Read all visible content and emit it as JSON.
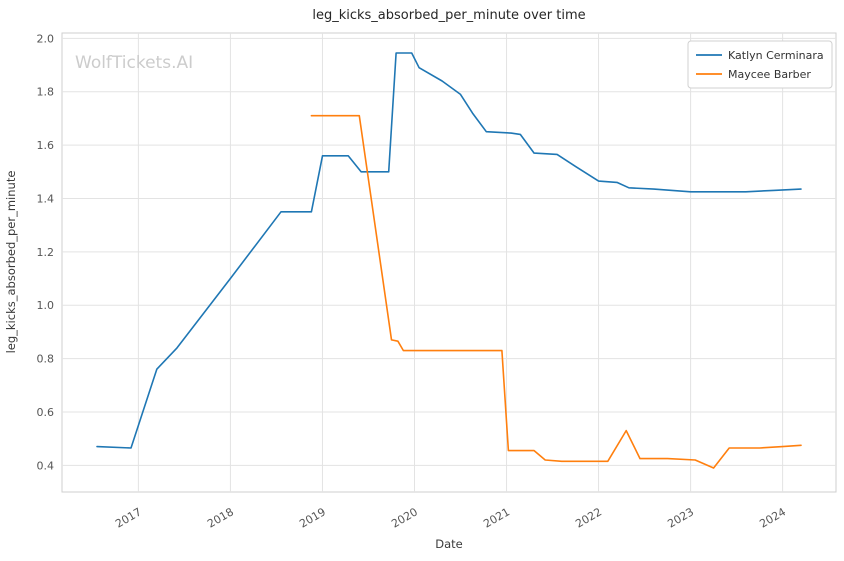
{
  "watermark": "WolfTickets.AI",
  "chart_data": {
    "type": "line",
    "title": "leg_kicks_absorbed_per_minute over time",
    "xlabel": "Date",
    "ylabel": "leg_kicks_absorbed_per_minute",
    "xlim": [
      2016.17,
      2024.58
    ],
    "ylim": [
      0.3,
      2.02
    ],
    "xticks": [
      2017,
      2018,
      2019,
      2020,
      2021,
      2022,
      2023,
      2024
    ],
    "yticks": [
      0.4,
      0.6,
      0.8,
      1.0,
      1.2,
      1.4,
      1.6,
      1.8,
      2.0
    ],
    "grid": true,
    "legend_position": "upper right",
    "grid_color": "#e3e3e3",
    "frame_color": "#cfcfcf",
    "series": [
      {
        "name": "Katlyn Cerminara",
        "color": "#1f77b4",
        "points": [
          [
            2016.55,
            0.47
          ],
          [
            2016.92,
            0.465
          ],
          [
            2017.2,
            0.76
          ],
          [
            2017.42,
            0.84
          ],
          [
            2018.0,
            1.1
          ],
          [
            2018.55,
            1.35
          ],
          [
            2018.88,
            1.35
          ],
          [
            2019.0,
            1.56
          ],
          [
            2019.28,
            1.56
          ],
          [
            2019.42,
            1.5
          ],
          [
            2019.72,
            1.5
          ],
          [
            2019.8,
            1.945
          ],
          [
            2019.97,
            1.945
          ],
          [
            2020.05,
            1.89
          ],
          [
            2020.3,
            1.84
          ],
          [
            2020.5,
            1.79
          ],
          [
            2020.63,
            1.72
          ],
          [
            2020.78,
            1.65
          ],
          [
            2021.05,
            1.645
          ],
          [
            2021.15,
            1.64
          ],
          [
            2021.3,
            1.57
          ],
          [
            2021.55,
            1.565
          ],
          [
            2021.75,
            1.52
          ],
          [
            2022.0,
            1.465
          ],
          [
            2022.2,
            1.46
          ],
          [
            2022.33,
            1.44
          ],
          [
            2022.6,
            1.435
          ],
          [
            2023.0,
            1.425
          ],
          [
            2023.3,
            1.425
          ],
          [
            2023.6,
            1.425
          ],
          [
            2023.9,
            1.43
          ],
          [
            2024.2,
            1.435
          ]
        ]
      },
      {
        "name": "Maycee Barber",
        "color": "#ff7f0e",
        "points": [
          [
            2018.88,
            1.71
          ],
          [
            2019.4,
            1.71
          ],
          [
            2019.75,
            0.87
          ],
          [
            2019.82,
            0.865
          ],
          [
            2019.88,
            0.83
          ],
          [
            2020.1,
            0.83
          ],
          [
            2020.55,
            0.83
          ],
          [
            2020.95,
            0.83
          ],
          [
            2021.02,
            0.455
          ],
          [
            2021.3,
            0.455
          ],
          [
            2021.42,
            0.42
          ],
          [
            2021.6,
            0.415
          ],
          [
            2021.9,
            0.415
          ],
          [
            2022.1,
            0.415
          ],
          [
            2022.3,
            0.53
          ],
          [
            2022.45,
            0.425
          ],
          [
            2022.75,
            0.425
          ],
          [
            2023.05,
            0.42
          ],
          [
            2023.25,
            0.39
          ],
          [
            2023.42,
            0.465
          ],
          [
            2023.75,
            0.465
          ],
          [
            2024.0,
            0.47
          ],
          [
            2024.2,
            0.475
          ]
        ]
      }
    ]
  }
}
